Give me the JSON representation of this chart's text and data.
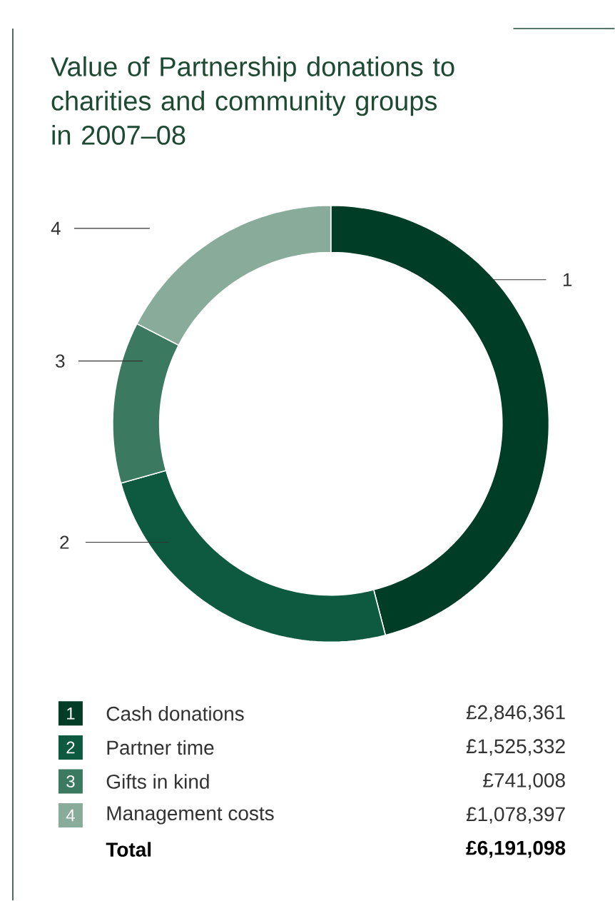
{
  "chart_data": {
    "type": "donut",
    "title": "Value of Partnership donations to charities and community groups in 2007–08",
    "categories": [
      "Cash donations",
      "Partner time",
      "Gifts in kind",
      "Management costs"
    ],
    "values": [
      2846361,
      1525332,
      741008,
      1078397
    ],
    "colors": [
      "#003d26",
      "#0e5a40",
      "#3b7a60",
      "#89ab99"
    ],
    "value_labels": [
      "£2,846,361",
      "£1,525,332",
      "£741,008",
      "£1,078,397"
    ],
    "legend": "bottom",
    "annotations": [
      "1",
      "2",
      "3",
      "4",
      "Total",
      "£6,191,098"
    ]
  }
}
